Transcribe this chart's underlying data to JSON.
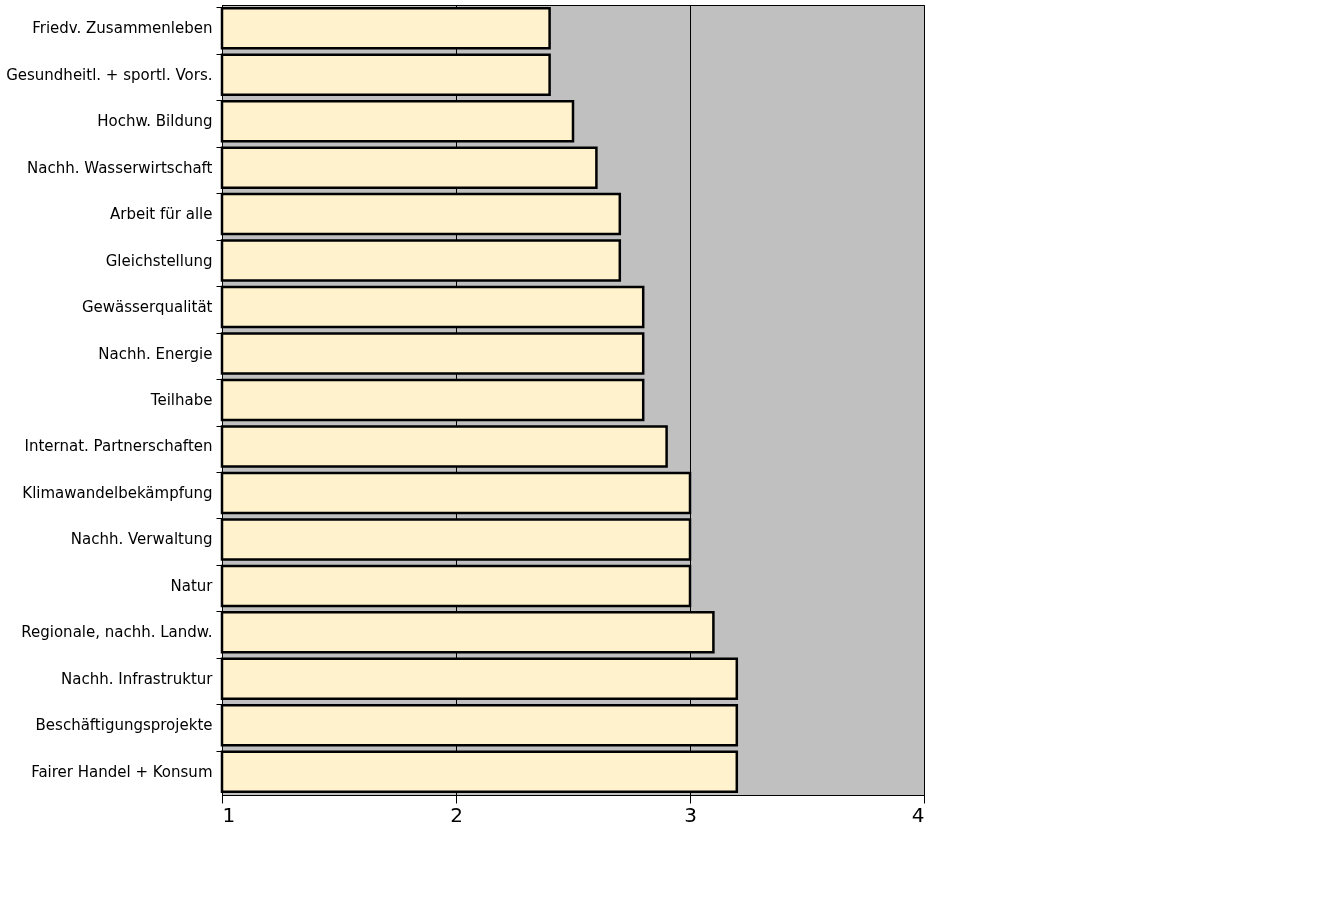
{
  "chart_data": {
    "type": "bar",
    "orientation": "horizontal",
    "categories": [
      "Friedv. Zusammenleben",
      "Gesundheitl. + sportl. Vors.",
      "Hochw. Bildung",
      "Nachh. Wasserwirtschaft",
      "Arbeit für alle",
      "Gleichstellung",
      "Gewässerqualität",
      "Nachh. Energie",
      "Teilhabe",
      "Internat. Partnerschaften",
      "Klimawandelbekämpfung",
      "Nachh. Verwaltung",
      "Natur",
      "Regionale, nachh. Landw.",
      "Nachh. Infrastruktur",
      "Beschäftigungsprojekte",
      "Fairer Handel + Konsum"
    ],
    "values": [
      2.4,
      2.4,
      2.5,
      2.6,
      2.7,
      2.7,
      2.8,
      2.8,
      2.8,
      2.9,
      3.0,
      3.0,
      3.0,
      3.1,
      3.2,
      3.2,
      3.2
    ],
    "color": "#fff2cc",
    "xlim": [
      1,
      4
    ],
    "xticks": [
      1,
      2,
      3,
      4
    ],
    "grid": "x"
  }
}
